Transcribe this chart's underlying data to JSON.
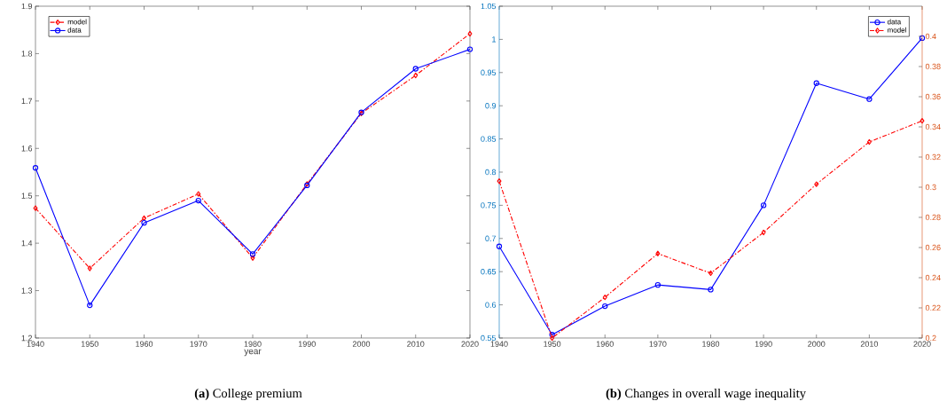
{
  "chart_data": [
    {
      "type": "line",
      "title": "**(a)** College premium",
      "xlabel": "year",
      "x": [
        1940,
        1950,
        1960,
        1970,
        1980,
        1990,
        2000,
        2010,
        2020
      ],
      "xlim": [
        1940,
        2020
      ],
      "xticks": [
        1940,
        1950,
        1960,
        1970,
        1980,
        1990,
        2000,
        2010,
        2020
      ],
      "ylim": [
        1.2,
        1.9
      ],
      "yticks": [
        1.2,
        1.3,
        1.4,
        1.5,
        1.6,
        1.7,
        1.8,
        1.9
      ],
      "grid": false,
      "legend": "top left",
      "series": [
        {
          "name": "model",
          "color": "#ff0000",
          "marker": "diamond",
          "line_style": "dashdot",
          "values": [
            1.474,
            1.347,
            1.453,
            1.504,
            1.369,
            1.525,
            1.674,
            1.754,
            1.842
          ]
        },
        {
          "name": "data",
          "color": "#0000ff",
          "marker": "circle",
          "line_style": "solid",
          "values": [
            1.559,
            1.269,
            1.443,
            1.49,
            1.377,
            1.522,
            1.676,
            1.768,
            1.809
          ]
        }
      ]
    },
    {
      "type": "line",
      "title": "**(b)** Changes in overall wage inequality",
      "x": [
        1940,
        1950,
        1960,
        1970,
        1980,
        1990,
        2000,
        2010,
        2020
      ],
      "xlim": [
        1940,
        2020
      ],
      "xticks": [
        1940,
        1950,
        1960,
        1970,
        1980,
        1990,
        2000,
        2010,
        2020
      ],
      "ylim": [
        0.55,
        1.05
      ],
      "yticks": [
        0.55,
        0.6,
        0.65,
        0.7,
        0.75,
        0.8,
        0.85,
        0.9,
        0.95,
        1,
        1.05
      ],
      "y2lim": [
        0.2,
        0.42
      ],
      "y2ticks": [
        0.2,
        0.22,
        0.24,
        0.26,
        0.28,
        0.3,
        0.32,
        0.34,
        0.36,
        0.38,
        0.4
      ],
      "grid": false,
      "legend": "top right",
      "series": [
        {
          "name": "data",
          "color": "#0000ff",
          "marker": "circle",
          "line_style": "solid",
          "values": [
            0.688,
            0.555,
            0.598,
            0.63,
            0.623,
            0.75,
            0.934,
            0.91,
            1.002
          ]
        },
        {
          "name": "model",
          "color": "#ff0000",
          "marker": "diamond",
          "line_style": "dashdot",
          "axis": "y2",
          "values": [
            0.304,
            0.2,
            0.227,
            0.256,
            0.243,
            0.27,
            0.302,
            0.33,
            0.344
          ]
        }
      ]
    }
  ]
}
